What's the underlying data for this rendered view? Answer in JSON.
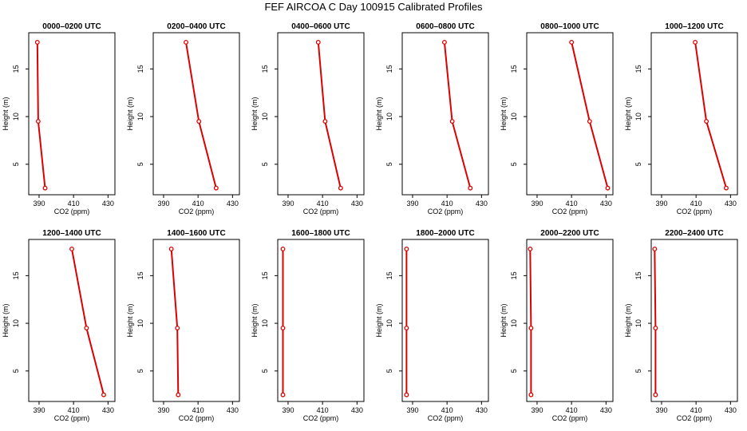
{
  "title": "FEF AIRCOA C  Day 100915  Calibrated Profiles",
  "chart_data": [
    {
      "type": "line",
      "title": "0000–0200 UTC",
      "xlabel": "CO2 (ppm)",
      "ylabel": "Height (m)",
      "xlim": [
        384,
        434
      ],
      "ylim": [
        1.8,
        18.8
      ],
      "xticks": [
        "390",
        "410",
        "430"
      ],
      "yticks": [
        "5",
        "10",
        "15"
      ],
      "series": [
        {
          "x": [
            389.0,
            389.5,
            393.5
          ],
          "y": [
            17.8,
            9.5,
            2.5
          ]
        }
      ],
      "color": "#dd0000"
    },
    {
      "type": "line",
      "title": "0200–0400 UTC",
      "xlabel": "CO2 (ppm)",
      "ylabel": "Height (m)",
      "xlim": [
        384,
        434
      ],
      "ylim": [
        1.8,
        18.8
      ],
      "xticks": [
        "390",
        "410",
        "430"
      ],
      "yticks": [
        "5",
        "10",
        "15"
      ],
      "series": [
        {
          "x": [
            403.0,
            410.5,
            420.5
          ],
          "y": [
            17.8,
            9.5,
            2.5
          ]
        }
      ],
      "color": "#dd0000"
    },
    {
      "type": "line",
      "title": "0400–0600 UTC",
      "xlabel": "CO2 (ppm)",
      "ylabel": "Height (m)",
      "xlim": [
        384,
        434
      ],
      "ylim": [
        1.8,
        18.8
      ],
      "xticks": [
        "390",
        "410",
        "430"
      ],
      "yticks": [
        "5",
        "10",
        "15"
      ],
      "series": [
        {
          "x": [
            407.5,
            411.5,
            420.5
          ],
          "y": [
            17.8,
            9.5,
            2.5
          ]
        }
      ],
      "color": "#dd0000"
    },
    {
      "type": "line",
      "title": "0600–0800 UTC",
      "xlabel": "CO2 (ppm)",
      "ylabel": "Height (m)",
      "xlim": [
        384,
        434
      ],
      "ylim": [
        1.8,
        18.8
      ],
      "xticks": [
        "390",
        "410",
        "430"
      ],
      "yticks": [
        "5",
        "10",
        "15"
      ],
      "series": [
        {
          "x": [
            408.5,
            413.0,
            423.5
          ],
          "y": [
            17.8,
            9.5,
            2.5
          ]
        }
      ],
      "color": "#dd0000"
    },
    {
      "type": "line",
      "title": "0800–1000 UTC",
      "xlabel": "CO2 (ppm)",
      "ylabel": "Height (m)",
      "xlim": [
        384,
        434
      ],
      "ylim": [
        1.8,
        18.8
      ],
      "xticks": [
        "390",
        "410",
        "430"
      ],
      "yticks": [
        "5",
        "10",
        "15"
      ],
      "series": [
        {
          "x": [
            410.0,
            420.5,
            431.0
          ],
          "y": [
            17.8,
            9.5,
            2.5
          ]
        }
      ],
      "color": "#dd0000"
    },
    {
      "type": "line",
      "title": "1000–1200 UTC",
      "xlabel": "CO2 (ppm)",
      "ylabel": "Height (m)",
      "xlim": [
        384,
        434
      ],
      "ylim": [
        1.8,
        18.8
      ],
      "xticks": [
        "390",
        "410",
        "430"
      ],
      "yticks": [
        "5",
        "10",
        "15"
      ],
      "series": [
        {
          "x": [
            409.5,
            416.0,
            427.5
          ],
          "y": [
            17.8,
            9.5,
            2.5
          ]
        }
      ],
      "color": "#dd0000"
    },
    {
      "type": "line",
      "title": "1200–1400 UTC",
      "xlabel": "CO2 (ppm)",
      "ylabel": "Height (m)",
      "xlim": [
        384,
        434
      ],
      "ylim": [
        1.8,
        18.8
      ],
      "xticks": [
        "390",
        "410",
        "430"
      ],
      "yticks": [
        "5",
        "10",
        "15"
      ],
      "series": [
        {
          "x": [
            409.0,
            417.5,
            427.5
          ],
          "y": [
            17.8,
            9.5,
            2.5
          ]
        }
      ],
      "color": "#dd0000"
    },
    {
      "type": "line",
      "title": "1400–1600 UTC",
      "xlabel": "CO2 (ppm)",
      "ylabel": "Height (m)",
      "xlim": [
        384,
        434
      ],
      "ylim": [
        1.8,
        18.8
      ],
      "xticks": [
        "390",
        "410",
        "430"
      ],
      "yticks": [
        "5",
        "10",
        "15"
      ],
      "series": [
        {
          "x": [
            394.5,
            398.0,
            398.5
          ],
          "y": [
            17.8,
            9.5,
            2.5
          ]
        }
      ],
      "color": "#dd0000"
    },
    {
      "type": "line",
      "title": "1600–1800 UTC",
      "xlabel": "CO2 (ppm)",
      "ylabel": "Height (m)",
      "xlim": [
        384,
        434
      ],
      "ylim": [
        1.8,
        18.8
      ],
      "xticks": [
        "390",
        "410",
        "430"
      ],
      "yticks": [
        "5",
        "10",
        "15"
      ],
      "series": [
        {
          "x": [
            387.0,
            387.0,
            387.0
          ],
          "y": [
            17.8,
            9.5,
            2.5
          ]
        }
      ],
      "color": "#dd0000"
    },
    {
      "type": "line",
      "title": "1800–2000 UTC",
      "xlabel": "CO2 (ppm)",
      "ylabel": "Height (m)",
      "xlim": [
        384,
        434
      ],
      "ylim": [
        1.8,
        18.8
      ],
      "xticks": [
        "390",
        "410",
        "430"
      ],
      "yticks": [
        "5",
        "10",
        "15"
      ],
      "series": [
        {
          "x": [
            386.5,
            386.5,
            386.5
          ],
          "y": [
            17.8,
            9.5,
            2.5
          ]
        }
      ],
      "color": "#dd0000"
    },
    {
      "type": "line",
      "title": "2000–2200 UTC",
      "xlabel": "CO2 (ppm)",
      "ylabel": "Height (m)",
      "xlim": [
        384,
        434
      ],
      "ylim": [
        1.8,
        18.8
      ],
      "xticks": [
        "390",
        "410",
        "430"
      ],
      "yticks": [
        "5",
        "10",
        "15"
      ],
      "series": [
        {
          "x": [
            386.0,
            386.5,
            386.5
          ],
          "y": [
            17.8,
            9.5,
            2.5
          ]
        }
      ],
      "color": "#dd0000"
    },
    {
      "type": "line",
      "title": "2200–2400 UTC",
      "xlabel": "CO2 (ppm)",
      "ylabel": "Height (m)",
      "xlim": [
        384,
        434
      ],
      "ylim": [
        1.8,
        18.8
      ],
      "xticks": [
        "390",
        "410",
        "430"
      ],
      "yticks": [
        "5",
        "10",
        "15"
      ],
      "series": [
        {
          "x": [
            386.0,
            386.5,
            386.5
          ],
          "y": [
            17.8,
            9.5,
            2.5
          ]
        }
      ],
      "color": "#dd0000"
    }
  ]
}
